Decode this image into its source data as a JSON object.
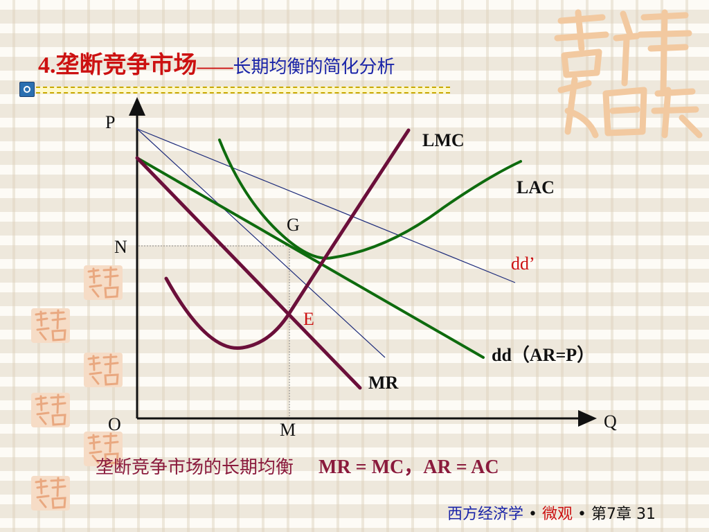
{
  "title": {
    "main": "4.垄断竞争市场",
    "dash": "——",
    "sub": "长期均衡的简化分析"
  },
  "graph": {
    "axis_y_label": "P",
    "axis_x_label": "Q",
    "origin_label": "O",
    "point_n": "N",
    "point_m": "M",
    "point_g": "G",
    "point_e": "E",
    "curve_lmc": "LMC",
    "curve_lac": "LAC",
    "curve_dd_prime": "dd’",
    "curve_dd": "dd（AR=P）",
    "curve_mr": "MR"
  },
  "caption": {
    "text": "垄断竞争市场的长期均衡",
    "equation": "MR = MC，AR = AC"
  },
  "footer": {
    "course": "西方经济学",
    "sep1": " • ",
    "part": "微观",
    "sep2": " • ",
    "chapter": "第7章 31"
  },
  "colors": {
    "title_red": "#cc1111",
    "subtitle_blue": "#1a24a8",
    "lmc_maroon": "#6b0f3a",
    "lac_green": "#0e6b0e",
    "dd_green": "#0e6b0e",
    "thin_line_navy": "#1c2a7a",
    "logo_peach": "#f2c9a0"
  },
  "icons": {
    "rule_icon": "bullet-circle-icon",
    "logo": "jixiangruyi-logo"
  }
}
